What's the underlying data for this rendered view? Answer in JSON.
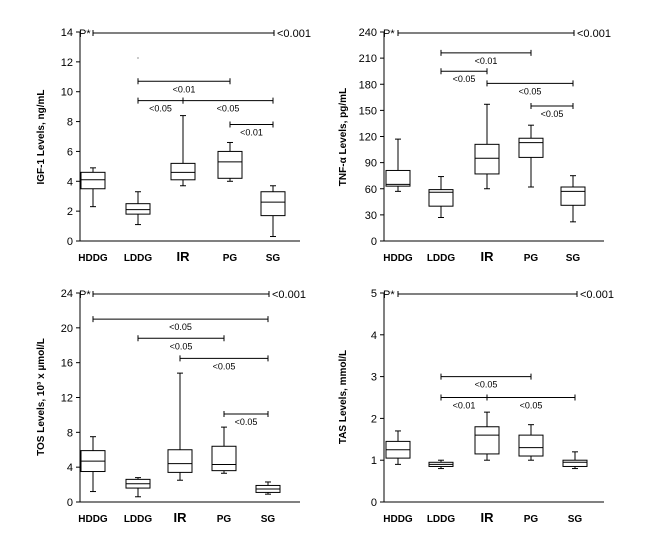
{
  "chart_data": [
    {
      "type": "boxplot",
      "ylabel": "IGF-1 Levels, ng/mL",
      "ylim": [
        0,
        14
      ],
      "yticks": [
        0,
        2,
        4,
        6,
        8,
        10,
        12,
        14
      ],
      "categories": [
        "HDDG",
        "LDDG",
        "IR",
        "PG",
        "SG"
      ],
      "boxes": [
        {
          "min": 2.3,
          "q1": 3.5,
          "median": 4.1,
          "q3": 4.6,
          "max": 4.9
        },
        {
          "min": 1.1,
          "q1": 1.8,
          "median": 2.1,
          "q3": 2.5,
          "max": 3.3
        },
        {
          "min": 3.7,
          "q1": 4.1,
          "median": 4.6,
          "q3": 5.2,
          "max": 8.4
        },
        {
          "min": 4.0,
          "q1": 4.2,
          "median": 5.3,
          "q3": 6.0,
          "max": 6.6
        },
        {
          "min": 0.3,
          "q1": 1.7,
          "median": 2.6,
          "q3": 3.3,
          "max": 3.7
        }
      ],
      "p_overall": {
        "label": "P*",
        "value": "<0.001"
      },
      "comparisons": [
        {
          "from": 1,
          "to": 3,
          "y": 10.7,
          "label": "<0.01"
        },
        {
          "from": 1,
          "to": 2,
          "y": 9.4,
          "label": "<0.05"
        },
        {
          "from": 2,
          "to": 4,
          "y": 9.4,
          "label": "<0.05"
        },
        {
          "from": 3,
          "to": 4,
          "y": 7.8,
          "label": "<0.01"
        }
      ],
      "stray_marks": [
        {
          "category": 1,
          "y": 12.1
        }
      ]
    },
    {
      "type": "boxplot",
      "ylabel": "TNF-α Levels, pg/mL",
      "ylim": [
        0,
        240
      ],
      "yticks": [
        0,
        30,
        60,
        90,
        120,
        150,
        180,
        210,
        240
      ],
      "categories": [
        "HDDG",
        "LDDG",
        "IR",
        "PG",
        "SG"
      ],
      "boxes": [
        {
          "min": 57,
          "q1": 63,
          "median": 65,
          "q3": 81,
          "max": 117
        },
        {
          "min": 27,
          "q1": 40,
          "median": 56,
          "q3": 59,
          "max": 74
        },
        {
          "min": 60,
          "q1": 77,
          "median": 95,
          "q3": 111,
          "max": 157
        },
        {
          "min": 62,
          "q1": 96,
          "median": 113,
          "q3": 118,
          "max": 133
        },
        {
          "min": 22,
          "q1": 41,
          "median": 57,
          "q3": 62,
          "max": 75
        }
      ],
      "p_overall": {
        "label": "P*",
        "value": "<0.001"
      },
      "comparisons": [
        {
          "from": 1,
          "to": 3,
          "y": 216,
          "label": "<0.01"
        },
        {
          "from": 1,
          "to": 2,
          "y": 195,
          "label": "<0.05"
        },
        {
          "from": 2,
          "to": 4,
          "y": 181,
          "label": "<0.05"
        },
        {
          "from": 3,
          "to": 4,
          "y": 155,
          "label": "<0.05"
        }
      ],
      "stray_marks": []
    },
    {
      "type": "boxplot",
      "ylabel": "TOS Levels, 10³ x µmol/L",
      "ylim": [
        0,
        24
      ],
      "yticks": [
        0,
        4,
        8,
        12,
        16,
        20,
        24
      ],
      "categories": [
        "HDDG",
        "LDDG",
        "IR",
        "PG",
        "SG"
      ],
      "boxes": [
        {
          "min": 1.2,
          "q1": 3.5,
          "median": 4.7,
          "q3": 5.9,
          "max": 7.5
        },
        {
          "min": 0.6,
          "q1": 1.6,
          "median": 2.1,
          "q3": 2.6,
          "max": 2.8
        },
        {
          "min": 2.5,
          "q1": 3.4,
          "median": 4.4,
          "q3": 6.0,
          "max": 14.8
        },
        {
          "min": 3.3,
          "q1": 3.6,
          "median": 4.3,
          "q3": 6.4,
          "max": 8.6
        },
        {
          "min": 0.9,
          "q1": 1.1,
          "median": 1.5,
          "q3": 1.9,
          "max": 2.3
        }
      ],
      "p_overall": {
        "label": "P*",
        "value": "<0.001"
      },
      "comparisons": [
        {
          "from": 0,
          "to": 4,
          "y": 21.0,
          "label": "<0.05"
        },
        {
          "from": 1,
          "to": 3,
          "y": 18.8,
          "label": "<0.05"
        },
        {
          "from": 2,
          "to": 4,
          "y": 16.5,
          "label": "<0.05"
        },
        {
          "from": 3,
          "to": 4,
          "y": 10.1,
          "label": "<0.05"
        }
      ],
      "stray_marks": []
    },
    {
      "type": "boxplot",
      "ylabel": "TAS Levels, mmol/L",
      "ylim": [
        0,
        5
      ],
      "yticks": [
        0,
        1,
        2,
        3,
        4,
        5
      ],
      "categories": [
        "HDDG",
        "LDDG",
        "IR",
        "PG",
        "SG"
      ],
      "boxes": [
        {
          "min": 0.9,
          "q1": 1.05,
          "median": 1.25,
          "q3": 1.45,
          "max": 1.7
        },
        {
          "min": 0.8,
          "q1": 0.85,
          "median": 0.9,
          "q3": 0.95,
          "max": 1.0
        },
        {
          "min": 1.0,
          "q1": 1.15,
          "median": 1.6,
          "q3": 1.8,
          "max": 2.15
        },
        {
          "min": 1.0,
          "q1": 1.1,
          "median": 1.3,
          "q3": 1.6,
          "max": 1.85
        },
        {
          "min": 0.8,
          "q1": 0.85,
          "median": 0.95,
          "q3": 1.0,
          "max": 1.2
        }
      ],
      "p_overall": {
        "label": "P*",
        "value": "<0.001"
      },
      "comparisons": [
        {
          "from": 1,
          "to": 3,
          "y": 3.0,
          "label": "<0.05"
        },
        {
          "from": 1,
          "to": 2,
          "y": 2.5,
          "label": "<0.01"
        },
        {
          "from": 2,
          "to": 4,
          "y": 2.5,
          "label": "<0.05"
        }
      ],
      "stray_marks": []
    }
  ]
}
